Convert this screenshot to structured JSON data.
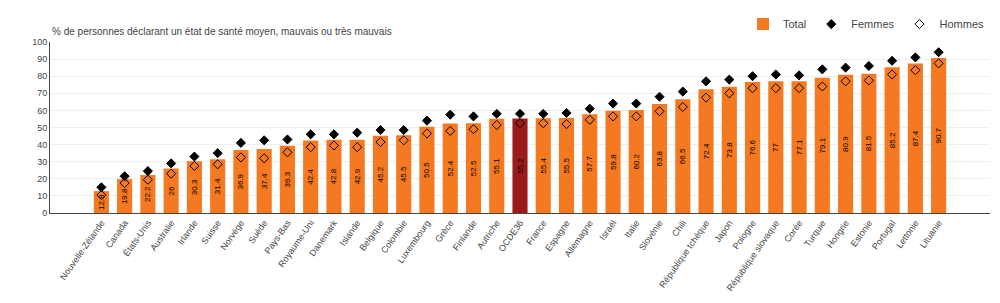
{
  "chart_data": {
    "type": "bar",
    "ylabel": "% de personnes déclarant un état de santé moyen, mauvais ou très mauvais",
    "categories": [
      "Nouvelle-Zélande",
      "Canada",
      "États-Unis",
      "Australie",
      "Irlande",
      "Suisse",
      "Norvège",
      "Suède",
      "Pays-Bas",
      "Royaume-Uni",
      "Danemark",
      "Islande",
      "Belgique",
      "Colombie",
      "Luxembourg",
      "Grèce",
      "Finlande",
      "Autriche",
      "OCDE36",
      "France",
      "Espagne",
      "Allemagne",
      "Israël",
      "Italie",
      "Slovénie",
      "Chili",
      "République tchèque",
      "Japon",
      "Pologne",
      "République slovaque",
      "Corée",
      "Turquie",
      "Hongrie",
      "Estonie",
      "Portugal",
      "Lettonie",
      "Lituanie"
    ],
    "series": [
      {
        "name": "Total",
        "type": "bar",
        "data_labels": true,
        "colors": [
          "#F47920",
          "#F47920",
          "#F47920",
          "#F47920",
          "#F47920",
          "#F47920",
          "#F47920",
          "#F47920",
          "#F47920",
          "#F47920",
          "#F47920",
          "#F47920",
          "#F47920",
          "#F47920",
          "#F47920",
          "#F47920",
          "#F47920",
          "#F47920",
          "#9B1B1B",
          "#F47920",
          "#F47920",
          "#F47920",
          "#F47920",
          "#F47920",
          "#F47920",
          "#F47920",
          "#F47920",
          "#F47920",
          "#F47920",
          "#F47920",
          "#F47920",
          "#F47920",
          "#F47920",
          "#F47920",
          "#F47920",
          "#F47920",
          "#F47920"
        ],
        "values": [
          12.8,
          19.8,
          22.2,
          26.0,
          30.3,
          31.4,
          36.9,
          37.4,
          39.3,
          42.4,
          42.8,
          42.9,
          45.2,
          45.5,
          50.5,
          52.4,
          52.5,
          55.1,
          55.2,
          55.4,
          55.5,
          57.7,
          59.8,
          60.2,
          63.8,
          66.5,
          72.4,
          73.8,
          76.6,
          77.0,
          77.1,
          79.1,
          80.9,
          81.5,
          85.2,
          87.4,
          90.7
        ]
      },
      {
        "name": "Femmes",
        "type": "scatter",
        "marker": "diamond",
        "color": "#000000",
        "values": [
          15.0,
          21.5,
          24.5,
          29.0,
          33.0,
          35.0,
          41.0,
          42.5,
          43.0,
          46.0,
          46.0,
          47.0,
          48.5,
          48.5,
          54.0,
          57.5,
          56.5,
          58.0,
          58.0,
          58.0,
          58.5,
          61.0,
          64.0,
          64.0,
          68.0,
          71.0,
          77.0,
          78.0,
          80.0,
          81.0,
          80.5,
          84.0,
          85.0,
          86.0,
          89.0,
          91.0,
          94.0
        ]
      },
      {
        "name": "Hommes",
        "type": "scatter",
        "marker": "diamond-open",
        "color": "#000000",
        "values": [
          10.5,
          17.5,
          19.5,
          23.0,
          27.5,
          28.5,
          32.5,
          32.0,
          35.5,
          38.5,
          39.5,
          38.5,
          41.5,
          42.5,
          46.5,
          48.0,
          49.0,
          51.5,
          52.5,
          52.5,
          52.0,
          54.5,
          56.5,
          56.5,
          59.5,
          62.0,
          67.5,
          70.0,
          73.0,
          73.0,
          73.0,
          74.0,
          77.0,
          77.5,
          81.0,
          83.5,
          87.5
        ]
      }
    ],
    "ylim": [
      0,
      100
    ],
    "yticks": [
      0,
      10,
      20,
      30,
      40,
      50,
      60,
      70,
      80,
      90,
      100
    ],
    "grid": true,
    "legend": "top"
  }
}
